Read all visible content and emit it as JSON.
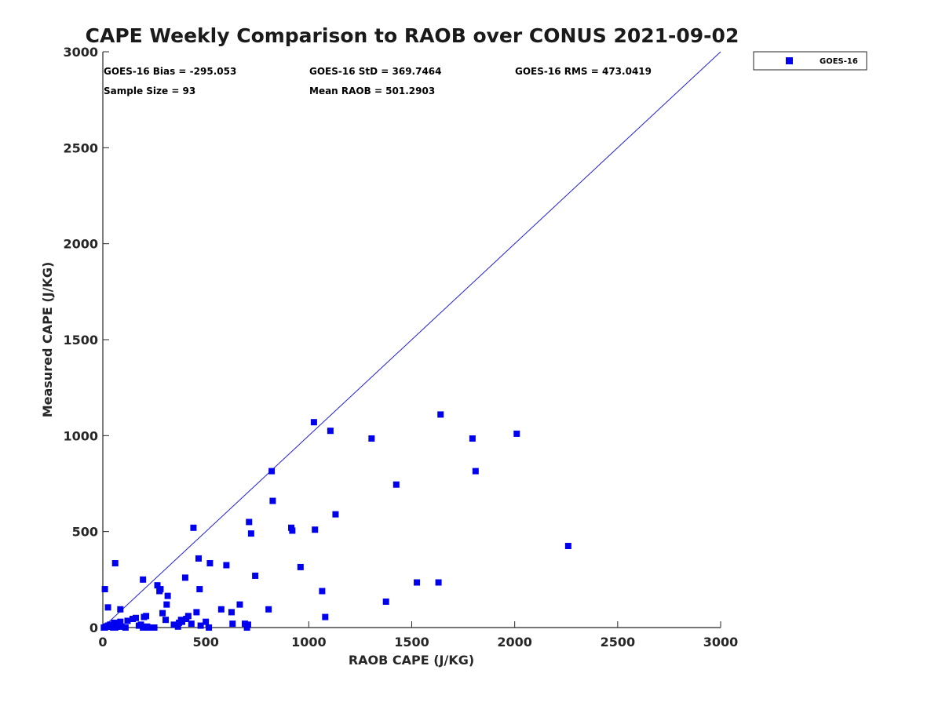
{
  "colors": {
    "series": "#0000ee",
    "diagonal": "#1f1fd6",
    "axis": "#262626",
    "background": "#ffffff"
  },
  "stats": {
    "bias": "GOES-16 Bias = -295.053",
    "std": "GOES-16 StD = 369.7464",
    "rms": "GOES-16 RMS = 473.0419",
    "sample_size": "Sample Size = 93",
    "mean_raob": "Mean RAOB = 501.2903"
  },
  "chart_data": {
    "type": "scatter",
    "title": "CAPE Weekly Comparison to RAOB over CONUS 2021-09-02",
    "xlabel": "RAOB CAPE (J/KG)",
    "ylabel": "Measured CAPE (J/KG)",
    "xlim": [
      0,
      3000
    ],
    "ylim": [
      0,
      3000
    ],
    "xticks": [
      "0",
      "500",
      "1000",
      "1500",
      "2000",
      "2500",
      "3000"
    ],
    "yticks": [
      "0",
      "500",
      "1000",
      "1500",
      "2000",
      "2500",
      "3000"
    ],
    "grid": false,
    "legend": "top-right, outside plot",
    "reference_line": {
      "type": "one-to-one",
      "from": [
        0,
        0
      ],
      "to": [
        3000,
        3000
      ]
    },
    "series": [
      {
        "name": "GOES-16",
        "marker": "square",
        "x": [
          5,
          10,
          15,
          20,
          25,
          30,
          35,
          45,
          50,
          55,
          60,
          70,
          80,
          85,
          90,
          110,
          160,
          175,
          185,
          195,
          200,
          205,
          215,
          225,
          240,
          250,
          10,
          25,
          60,
          85,
          195,
          265,
          275,
          280,
          305,
          310,
          315,
          365,
          370,
          385,
          400,
          405,
          415,
          440,
          455,
          465,
          470,
          475,
          515,
          520,
          575,
          600,
          625,
          630,
          665,
          690,
          700,
          705,
          710,
          720,
          740,
          805,
          820,
          825,
          915,
          920,
          960,
          1025,
          1030,
          1065,
          1080,
          1105,
          1130,
          1305,
          1375,
          1425,
          1525,
          1630,
          1640,
          1795,
          1810,
          2010,
          2260,
          35,
          55,
          120,
          145,
          210,
          290,
          345,
          380,
          430,
          500
        ],
        "y": [
          0,
          0,
          5,
          5,
          10,
          5,
          5,
          10,
          0,
          5,
          0,
          5,
          5,
          30,
          5,
          0,
          50,
          10,
          15,
          0,
          55,
          0,
          5,
          0,
          0,
          0,
          200,
          105,
          335,
          95,
          250,
          220,
          190,
          200,
          40,
          120,
          165,
          5,
          25,
          30,
          260,
          45,
          60,
          520,
          80,
          360,
          200,
          10,
          0,
          335,
          95,
          325,
          80,
          20,
          120,
          20,
          0,
          15,
          550,
          490,
          270,
          95,
          815,
          660,
          520,
          505,
          315,
          1070,
          510,
          190,
          55,
          1025,
          590,
          985,
          135,
          745,
          235,
          235,
          1110,
          985,
          815,
          1010,
          425,
          15,
          25,
          35,
          45,
          60,
          75,
          15,
          40,
          20,
          30
        ]
      }
    ]
  }
}
